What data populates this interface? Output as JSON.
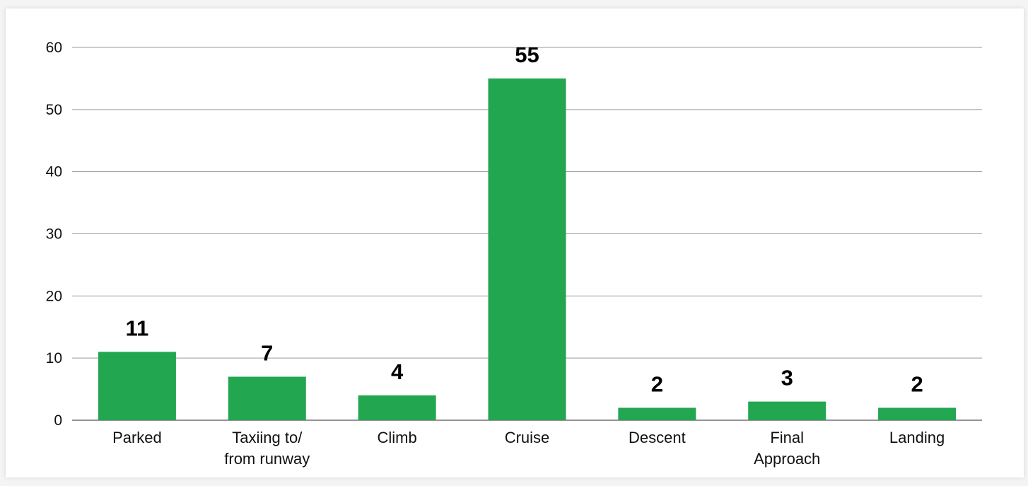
{
  "chart_data": {
    "type": "bar",
    "categories": [
      "Parked",
      "Taxiing to/ from runway",
      "Climb",
      "Cruise",
      "Descent",
      "Final Approach",
      "Landing"
    ],
    "category_lines": [
      [
        "Parked"
      ],
      [
        "Taxiing to/",
        "from runway"
      ],
      [
        "Climb"
      ],
      [
        "Cruise"
      ],
      [
        "Descent"
      ],
      [
        "Final",
        "Approach"
      ],
      [
        "Landing"
      ]
    ],
    "values": [
      11,
      7,
      4,
      55,
      2,
      3,
      2
    ],
    "data_labels": [
      "11",
      "7",
      "4",
      "55",
      "2",
      "3",
      "2"
    ],
    "y_ticks": [
      0,
      10,
      20,
      30,
      40,
      50,
      60
    ],
    "ylim": [
      0,
      60
    ],
    "title": "",
    "xlabel": "",
    "ylabel": "",
    "grid": true,
    "legend": "none",
    "bar_color": "#22a650"
  }
}
